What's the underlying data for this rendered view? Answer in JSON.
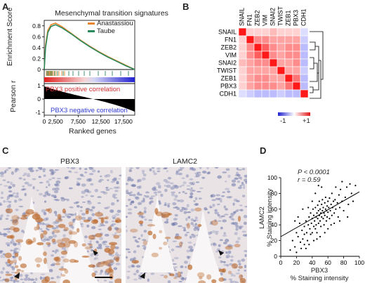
{
  "panels": {
    "a": "A",
    "b": "B",
    "c": "C",
    "d": "D"
  },
  "panel_a": {
    "title": "Mesenchymal transition signatures",
    "ylabel_top": "Enrichment Score",
    "ylabel_bottom": "Pearson r",
    "xlabel": "Ranked genes",
    "ticks_y_top": [
      "0.8",
      "0.6",
      "0.4",
      "0.2",
      "0"
    ],
    "ticks_y_bottom": [
      "1",
      "0",
      "-1"
    ],
    "ticks_x": [
      "0",
      "2,500",
      "7,500",
      "12,500",
      "17,500"
    ],
    "legend": [
      {
        "name": "Anastassiou",
        "color": "#e8852e"
      },
      {
        "name": "Taube",
        "color": "#2a8a5c"
      }
    ],
    "pos_label": "PBX3 positive correlation",
    "neg_label": "PBX3 negative correlation",
    "pos_color": "#d32f2f",
    "neg_color": "#2f3bd3"
  },
  "panel_b": {
    "genes": [
      "SNAIL",
      "FN1",
      "ZEB2",
      "VIM",
      "SNAI2",
      "TWIST",
      "ZEB1",
      "PBX3",
      "CDH1"
    ],
    "scale_min": "-1",
    "scale_max": "+1"
  },
  "panel_c": {
    "left_label": "PBX3",
    "right_label": "LAMC2"
  },
  "panel_d": {
    "p_value": "P < 0.0001",
    "r_value": "r = 0.59",
    "ylabel_line1": "LAMC2",
    "ylabel_line2": "% Staining intensity",
    "xlabel_line1": "PBX3",
    "xlabel_line2": "% Staining intensity",
    "ticks_x": [
      "0",
      "20",
      "40",
      "60",
      "80",
      "100"
    ],
    "ticks_y": [
      "0",
      "20",
      "40",
      "60",
      "80",
      "100"
    ]
  },
  "chart_data": [
    {
      "type": "line",
      "title": "Mesenchymal transition signatures",
      "xlabel": "Ranked genes",
      "ylabel": "Enrichment Score",
      "xlim": [
        0,
        20000
      ],
      "ylim": [
        0,
        0.9
      ],
      "series": [
        {
          "name": "Anastassiou",
          "x": [
            0,
            300,
            800,
            1500,
            2500,
            4000,
            6000,
            8000,
            10000,
            12000,
            14000,
            16000,
            18000,
            20000
          ],
          "y": [
            0,
            0.45,
            0.72,
            0.82,
            0.85,
            0.78,
            0.66,
            0.54,
            0.43,
            0.33,
            0.24,
            0.16,
            0.08,
            0
          ]
        },
        {
          "name": "Taube",
          "x": [
            0,
            300,
            800,
            1500,
            2500,
            4000,
            6000,
            8000,
            10000,
            12000,
            14000,
            16000,
            18000,
            20000
          ],
          "y": [
            0,
            0.4,
            0.68,
            0.79,
            0.82,
            0.76,
            0.65,
            0.53,
            0.42,
            0.32,
            0.23,
            0.15,
            0.07,
            0
          ]
        }
      ]
    },
    {
      "type": "heatmap",
      "rows": [
        "SNAIL",
        "FN1",
        "ZEB2",
        "VIM",
        "SNAI2",
        "TWIST",
        "ZEB1",
        "PBX3",
        "CDH1"
      ],
      "columns": [
        "SNAIL",
        "FN1",
        "ZEB2",
        "VIM",
        "SNAI2",
        "TWIST",
        "ZEB1",
        "PBX3",
        "CDH1"
      ],
      "values": [
        [
          1,
          0.2,
          0.2,
          0.2,
          0.3,
          0.2,
          0.2,
          0.2,
          -0.2
        ],
        [
          0.2,
          1,
          0.5,
          0.5,
          0.4,
          0.4,
          0.4,
          0.4,
          -0.3
        ],
        [
          0.2,
          0.5,
          1,
          0.7,
          0.5,
          0.4,
          0.5,
          0.5,
          -0.4
        ],
        [
          0.2,
          0.5,
          0.7,
          1,
          0.5,
          0.4,
          0.5,
          0.5,
          -0.4
        ],
        [
          0.3,
          0.4,
          0.5,
          0.5,
          1,
          0.4,
          0.4,
          0.5,
          -0.4
        ],
        [
          0.2,
          0.4,
          0.4,
          0.4,
          0.4,
          1,
          0.4,
          0.4,
          -0.3
        ],
        [
          0.2,
          0.4,
          0.5,
          0.5,
          0.4,
          0.4,
          1,
          0.6,
          -0.4
        ],
        [
          0.2,
          0.4,
          0.5,
          0.5,
          0.5,
          0.4,
          0.6,
          1,
          -0.4
        ],
        [
          -0.2,
          -0.3,
          -0.4,
          -0.4,
          -0.4,
          -0.3,
          -0.4,
          -0.4,
          1
        ]
      ],
      "scale": [
        -1,
        1
      ]
    },
    {
      "type": "scatter",
      "xlabel": "PBX3 % Staining intensity",
      "ylabel": "LAMC2 % Staining intensity",
      "xlim": [
        0,
        100
      ],
      "ylim": [
        0,
        100
      ],
      "fit": {
        "intercept": 25,
        "slope": 0.57
      },
      "points": [
        [
          12,
          8
        ],
        [
          15,
          20
        ],
        [
          18,
          12
        ],
        [
          20,
          30
        ],
        [
          22,
          25
        ],
        [
          24,
          42
        ],
        [
          25,
          18
        ],
        [
          27,
          33
        ],
        [
          28,
          22
        ],
        [
          30,
          38
        ],
        [
          30,
          28
        ],
        [
          32,
          45
        ],
        [
          33,
          30
        ],
        [
          34,
          20
        ],
        [
          35,
          40
        ],
        [
          36,
          50
        ],
        [
          37,
          35
        ],
        [
          38,
          28
        ],
        [
          38,
          55
        ],
        [
          39,
          42
        ],
        [
          40,
          30
        ],
        [
          40,
          48
        ],
        [
          41,
          60
        ],
        [
          42,
          38
        ],
        [
          42,
          52
        ],
        [
          43,
          45
        ],
        [
          44,
          35
        ],
        [
          44,
          62
        ],
        [
          45,
          50
        ],
        [
          45,
          40
        ],
        [
          46,
          55
        ],
        [
          46,
          30
        ],
        [
          47,
          65
        ],
        [
          47,
          48
        ],
        [
          48,
          42
        ],
        [
          48,
          58
        ],
        [
          49,
          52
        ],
        [
          49,
          70
        ],
        [
          50,
          45
        ],
        [
          50,
          60
        ],
        [
          51,
          38
        ],
        [
          51,
          55
        ],
        [
          52,
          66
        ],
        [
          52,
          50
        ],
        [
          53,
          58
        ],
        [
          53,
          72
        ],
        [
          54,
          48
        ],
        [
          54,
          62
        ],
        [
          55,
          55
        ],
        [
          55,
          40
        ],
        [
          56,
          68
        ],
        [
          56,
          52
        ],
        [
          57,
          60
        ],
        [
          57,
          75
        ],
        [
          58,
          45
        ],
        [
          58,
          58
        ],
        [
          59,
          64
        ],
        [
          59,
          50
        ],
        [
          60,
          70
        ],
        [
          60,
          56
        ],
        [
          61,
          62
        ],
        [
          62,
          48
        ],
        [
          62,
          74
        ],
        [
          63,
          58
        ],
        [
          64,
          66
        ],
        [
          65,
          52
        ],
        [
          65,
          80
        ],
        [
          66,
          62
        ],
        [
          67,
          70
        ],
        [
          68,
          55
        ],
        [
          69,
          72
        ],
        [
          70,
          60
        ],
        [
          72,
          68
        ],
        [
          73,
          50
        ],
        [
          74,
          78
        ],
        [
          75,
          62
        ],
        [
          76,
          85
        ],
        [
          78,
          70
        ],
        [
          80,
          58
        ],
        [
          82,
          75
        ],
        [
          84,
          88
        ],
        [
          86,
          66
        ],
        [
          88,
          92
        ],
        [
          90,
          80
        ],
        [
          92,
          70
        ],
        [
          95,
          90
        ],
        [
          18,
          45
        ],
        [
          22,
          50
        ],
        [
          26,
          10
        ],
        [
          30,
          15
        ],
        [
          35,
          62
        ],
        [
          40,
          70
        ],
        [
          44,
          80
        ],
        [
          48,
          90
        ],
        [
          52,
          88
        ],
        [
          56,
          30
        ],
        [
          60,
          35
        ],
        [
          64,
          40
        ],
        [
          68,
          42
        ],
        [
          70,
          88
        ],
        [
          75,
          45
        ],
        [
          78,
          95
        ],
        [
          85,
          50
        ],
        [
          20,
          5
        ],
        [
          28,
          60
        ],
        [
          32,
          10
        ],
        [
          36,
          15
        ],
        [
          42,
          20
        ],
        [
          46,
          22
        ],
        [
          50,
          25
        ]
      ]
    }
  ]
}
